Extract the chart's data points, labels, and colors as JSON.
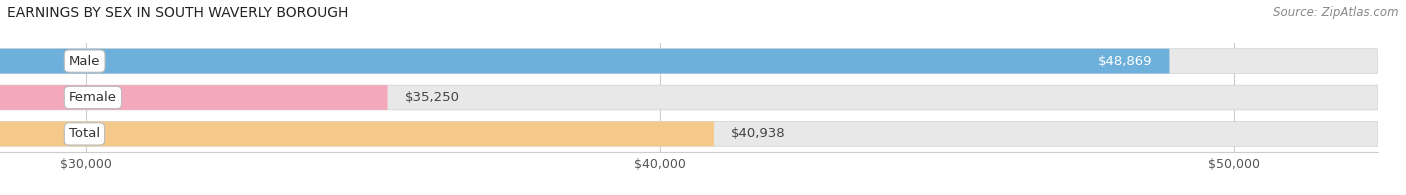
{
  "title": "EARNINGS BY SEX IN SOUTH WAVERLY BOROUGH",
  "source": "Source: ZipAtlas.com",
  "categories": [
    "Male",
    "Female",
    "Total"
  ],
  "values": [
    48869,
    35250,
    40938
  ],
  "bar_colors": [
    "#6eb0dc",
    "#f4a8bc",
    "#f5c98a"
  ],
  "bar_bg_color": "#e8e8e8",
  "xmin": 28500,
  "xmax": 52500,
  "xticks": [
    30000,
    40000,
    50000
  ],
  "xtick_labels": [
    "$30,000",
    "$40,000",
    "$50,000"
  ],
  "value_labels": [
    "$48,869",
    "$35,250",
    "$40,938"
  ],
  "value_label_inside": [
    true,
    false,
    false
  ],
  "figsize": [
    14.06,
    1.95
  ],
  "dpi": 100,
  "bar_height": 0.68,
  "bar_gap": 0.32
}
